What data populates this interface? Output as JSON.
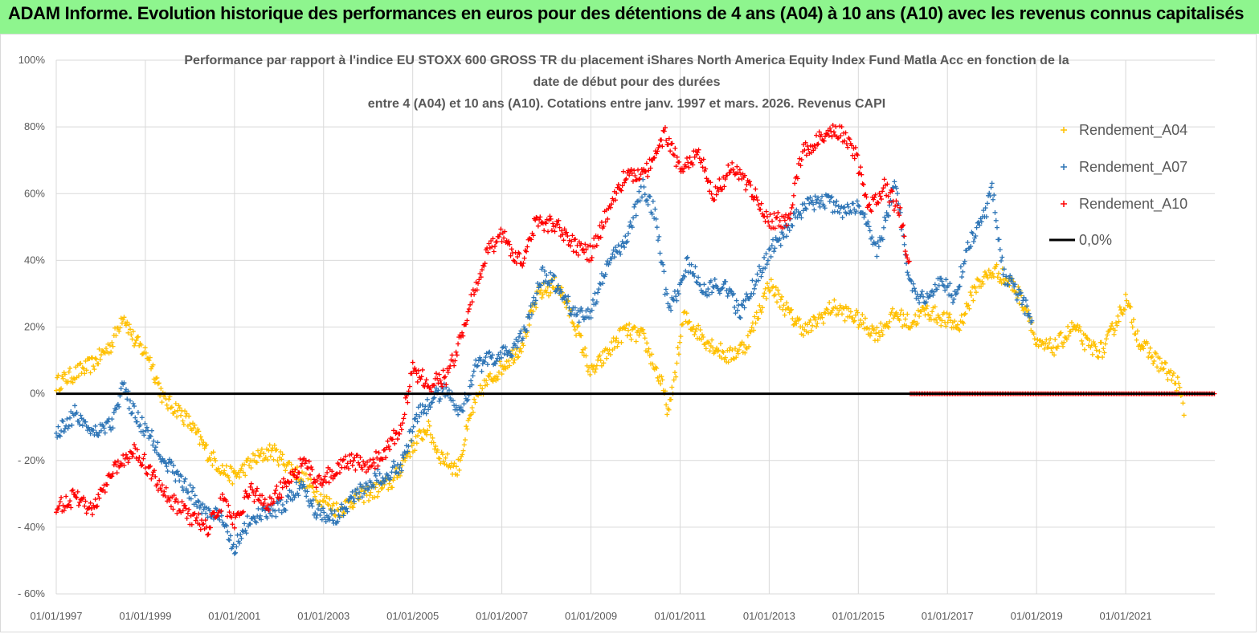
{
  "banner": {
    "text": "ADAM Informe. Evolution historique des performances en euros pour des détentions de 4 ans (A04) à 10 ans (A10) avec les revenus connus capitalisés",
    "color": "#8ef58e"
  },
  "chart_data": {
    "type": "scatter",
    "title_lines": [
      "Performance par rapport à l'indice EU STOXX 600 GROSS TR  du placement iShares North America Equity Index Fund Matla Acc en fonction de la",
      "date de début pour des durées",
      "entre 4 (A04) et 10 ans (A10). Cotations entre janv. 1997 et mars. 2026. Revenus CAPI"
    ],
    "xlabel": "",
    "ylabel": "",
    "x_range": [
      "1997-01-01",
      "2023-01-01"
    ],
    "ylim": [
      -60,
      100
    ],
    "y_ticks": [
      -60,
      -40,
      -20,
      0,
      20,
      40,
      60,
      80,
      100
    ],
    "y_tick_labels": [
      "- 60%",
      "- 40%",
      "- 20%",
      "0%",
      "20%",
      "40%",
      "60%",
      "80%",
      "100%"
    ],
    "x_tick_labels": [
      "01/01/1997",
      "01/01/1999",
      "01/01/2001",
      "01/01/2003",
      "01/01/2005",
      "01/01/2007",
      "01/01/2009",
      "01/01/2011",
      "01/01/2013",
      "01/01/2015",
      "01/01/2017",
      "01/01/2019",
      "01/01/2021"
    ],
    "grid": true,
    "legend_position": "top-right",
    "series": [
      {
        "name": "Rendement_A04",
        "color": "#ffc000",
        "marker": "+",
        "points": [
          [
            "1997-01",
            3
          ],
          [
            "1997-06",
            6
          ],
          [
            "1997-11",
            9
          ],
          [
            "1998-04",
            15
          ],
          [
            "1998-07",
            24
          ],
          [
            "1998-10",
            16
          ],
          [
            "1999-02",
            11
          ],
          [
            "1999-06",
            -2
          ],
          [
            "1999-10",
            -5
          ],
          [
            "2000-01",
            -9
          ],
          [
            "2000-06",
            -18
          ],
          [
            "2000-10",
            -23
          ],
          [
            "2001-01",
            -25
          ],
          [
            "2001-06",
            -20
          ],
          [
            "2001-11",
            -17
          ],
          [
            "2002-03",
            -21
          ],
          [
            "2002-08",
            -26
          ],
          [
            "2002-12",
            -31
          ],
          [
            "2003-05",
            -35
          ],
          [
            "2003-10",
            -31
          ],
          [
            "2004-03",
            -29
          ],
          [
            "2004-08",
            -26
          ],
          [
            "2004-12",
            -17
          ],
          [
            "2005-05",
            -10
          ],
          [
            "2005-08",
            -18
          ],
          [
            "2006-01",
            -23
          ],
          [
            "2006-05",
            -5
          ],
          [
            "2006-08",
            2
          ],
          [
            "2007-01",
            8
          ],
          [
            "2007-06",
            14
          ],
          [
            "2007-11",
            30
          ],
          [
            "2008-04",
            33
          ],
          [
            "2008-09",
            20
          ],
          [
            "2009-01",
            6
          ],
          [
            "2009-06",
            13
          ],
          [
            "2009-10",
            19
          ],
          [
            "2010-03",
            17
          ],
          [
            "2010-08",
            3
          ],
          [
            "2010-10",
            -6
          ],
          [
            "2011-02",
            23
          ],
          [
            "2011-08",
            16
          ],
          [
            "2012-02",
            11
          ],
          [
            "2012-07",
            15
          ],
          [
            "2013-01",
            33
          ],
          [
            "2013-07",
            23
          ],
          [
            "2013-11",
            19
          ],
          [
            "2014-06",
            26
          ],
          [
            "2014-12",
            23
          ],
          [
            "2015-06",
            18
          ],
          [
            "2015-11",
            24
          ],
          [
            "2016-03",
            21
          ],
          [
            "2016-07",
            25
          ],
          [
            "2016-11",
            23
          ],
          [
            "2017-04",
            20
          ],
          [
            "2017-09",
            33
          ],
          [
            "2018-02",
            37
          ],
          [
            "2018-07",
            32
          ],
          [
            "2018-11",
            24
          ],
          [
            "2019-01",
            14
          ],
          [
            "2019-06",
            14
          ],
          [
            "2019-11",
            20
          ],
          [
            "2020-03",
            14
          ],
          [
            "2020-07",
            13
          ],
          [
            "2021-01",
            28
          ],
          [
            "2021-05",
            15
          ],
          [
            "2021-11",
            8
          ],
          [
            "2022-03",
            3
          ],
          [
            "2022-05",
            -6
          ]
        ]
      },
      {
        "name": "Rendement_A07",
        "color": "#2e75b6",
        "marker": "+",
        "points": [
          [
            "1997-01",
            -12
          ],
          [
            "1997-06",
            -6
          ],
          [
            "1997-11",
            -11
          ],
          [
            "1998-04",
            -9
          ],
          [
            "1998-07",
            2
          ],
          [
            "1998-10",
            -6
          ],
          [
            "1999-03",
            -14
          ],
          [
            "1999-07",
            -21
          ],
          [
            "1999-12",
            -28
          ],
          [
            "2000-05",
            -35
          ],
          [
            "2000-09",
            -37
          ],
          [
            "2001-01",
            -46
          ],
          [
            "2001-05",
            -38
          ],
          [
            "2001-09",
            -36
          ],
          [
            "2002-02",
            -34
          ],
          [
            "2002-07",
            -27
          ],
          [
            "2002-11",
            -35
          ],
          [
            "2003-04",
            -37
          ],
          [
            "2003-09",
            -31
          ],
          [
            "2004-02",
            -26
          ],
          [
            "2004-06",
            -24
          ],
          [
            "2004-10",
            -21
          ],
          [
            "2005-02",
            -7
          ],
          [
            "2005-06",
            -2
          ],
          [
            "2005-10",
            2
          ],
          [
            "2006-02",
            -6
          ],
          [
            "2006-06",
            8
          ],
          [
            "2006-11",
            11
          ],
          [
            "2007-03",
            12
          ],
          [
            "2007-08",
            21
          ],
          [
            "2007-12",
            36
          ],
          [
            "2008-05",
            31
          ],
          [
            "2008-09",
            23
          ],
          [
            "2009-01",
            25
          ],
          [
            "2009-06",
            40
          ],
          [
            "2009-10",
            45
          ],
          [
            "2010-03",
            62
          ],
          [
            "2010-06",
            55
          ],
          [
            "2010-10",
            24
          ],
          [
            "2011-03",
            39
          ],
          [
            "2011-08",
            31
          ],
          [
            "2012-01",
            33
          ],
          [
            "2012-05",
            24
          ],
          [
            "2012-09",
            33
          ],
          [
            "2013-02",
            44
          ],
          [
            "2013-07",
            51
          ],
          [
            "2013-11",
            56
          ],
          [
            "2014-04",
            58
          ],
          [
            "2014-09",
            55
          ],
          [
            "2015-02",
            56
          ],
          [
            "2015-06",
            42
          ],
          [
            "2015-11",
            63
          ],
          [
            "2016-03",
            32
          ],
          [
            "2016-07",
            28
          ],
          [
            "2016-11",
            34
          ],
          [
            "2017-03",
            29
          ],
          [
            "2017-07",
            46
          ],
          [
            "2017-11",
            53
          ],
          [
            "2018-01",
            63
          ],
          [
            "2018-04",
            36
          ],
          [
            "2018-08",
            30
          ],
          [
            "2018-12",
            22
          ]
        ]
      },
      {
        "name": "Rendement_A10",
        "color": "#ff0000",
        "marker": "+",
        "points": [
          [
            "1997-01",
            -34
          ],
          [
            "1997-06",
            -31
          ],
          [
            "1997-11",
            -35
          ],
          [
            "1998-04",
            -23
          ],
          [
            "1998-07",
            -20
          ],
          [
            "1998-10",
            -16
          ],
          [
            "1999-01",
            -21
          ],
          [
            "1999-05",
            -28
          ],
          [
            "1999-09",
            -33
          ],
          [
            "2000-01",
            -37
          ],
          [
            "2000-06",
            -40
          ],
          [
            "2000-10",
            -32
          ],
          [
            "2001-01",
            -39
          ],
          [
            "2001-05",
            -29
          ],
          [
            "2001-10",
            -33
          ],
          [
            "2002-03",
            -27
          ],
          [
            "2002-08",
            -20
          ],
          [
            "2002-11",
            -27
          ],
          [
            "2003-03",
            -24
          ],
          [
            "2003-08",
            -20
          ],
          [
            "2004-01",
            -22
          ],
          [
            "2004-06",
            -17
          ],
          [
            "2004-10",
            -9
          ],
          [
            "2005-01",
            7
          ],
          [
            "2005-06",
            3
          ],
          [
            "2005-10",
            5
          ],
          [
            "2006-02",
            16
          ],
          [
            "2006-05",
            29
          ],
          [
            "2006-09",
            42
          ],
          [
            "2007-01",
            48
          ],
          [
            "2007-06",
            39
          ],
          [
            "2007-10",
            51
          ],
          [
            "2008-03",
            51
          ],
          [
            "2008-08",
            45
          ],
          [
            "2009-01",
            42
          ],
          [
            "2009-06",
            56
          ],
          [
            "2009-10",
            65
          ],
          [
            "2010-04",
            67
          ],
          [
            "2010-09",
            78
          ],
          [
            "2011-01",
            68
          ],
          [
            "2011-06",
            72
          ],
          [
            "2011-10",
            60
          ],
          [
            "2012-03",
            68
          ],
          [
            "2012-08",
            62
          ],
          [
            "2013-01",
            52
          ],
          [
            "2013-06",
            52
          ],
          [
            "2013-10",
            72
          ],
          [
            "2014-03",
            77
          ],
          [
            "2014-08",
            79
          ],
          [
            "2014-12",
            73
          ],
          [
            "2015-04",
            55
          ],
          [
            "2015-08",
            62
          ],
          [
            "2015-12",
            55
          ],
          [
            "2016-03",
            37
          ]
        ]
      },
      {
        "name": "0,0%",
        "color": "#000000",
        "marker": "line",
        "points": [
          [
            "1997-01",
            0
          ],
          [
            "2023-01",
            0
          ]
        ]
      }
    ],
    "zero_markers": {
      "color": "#ff0000",
      "x_range": [
        "2016-03",
        "2023-01"
      ],
      "value": 0
    }
  }
}
